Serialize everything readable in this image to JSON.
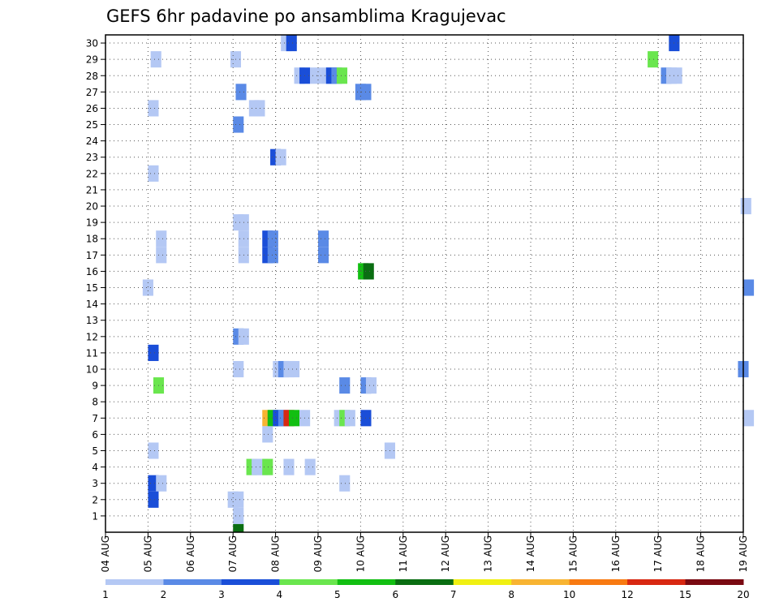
{
  "chart_data": {
    "type": "heatmap",
    "title": "GEFS 6hr padavine po ansamblima Kragujevac",
    "x_tick_labels": [
      "04 AUG",
      "05 AUG",
      "06 AUG",
      "07 AUG",
      "08 AUG",
      "09 AUG",
      "10 AUG",
      "11 AUG",
      "12 AUG",
      "13 AUG",
      "14 AUG",
      "15 AUG",
      "16 AUG",
      "17 AUG",
      "18 AUG",
      "19 AUG"
    ],
    "x_range_days": [
      0,
      15
    ],
    "y_range": [
      0,
      30
    ],
    "y_ticks": [
      1,
      2,
      3,
      4,
      5,
      6,
      7,
      8,
      9,
      10,
      11,
      12,
      13,
      14,
      15,
      16,
      17,
      18,
      19,
      20,
      21,
      22,
      23,
      24,
      25,
      26,
      27,
      28,
      29,
      30
    ],
    "grid": true,
    "colorbar": {
      "tick_labels": [
        "1",
        "2",
        "3",
        "4",
        "5",
        "6",
        "7",
        "8",
        "10",
        "12",
        "15",
        "20"
      ],
      "colors": [
        "#b4c8f4",
        "#5a8ae6",
        "#1a4ed8",
        "#6ae64e",
        "#12bf12",
        "#0a6e12",
        "#f0f012",
        "#f8b432",
        "#f87a12",
        "#d82812",
        "#7a0a12"
      ]
    },
    "cells": [
      {
        "m": 30,
        "t": 16.5,
        "c": 1
      },
      {
        "m": 30,
        "t": 17,
        "c": 3
      },
      {
        "m": 30,
        "t": 53,
        "c": 3
      },
      {
        "m": 29,
        "t": 4.25,
        "c": 1
      },
      {
        "m": 29,
        "t": 11.75,
        "c": 1
      },
      {
        "m": 29,
        "t": 51,
        "c": 4
      },
      {
        "m": 28,
        "t": 17.75,
        "c": 1
      },
      {
        "m": 28,
        "t": 18.25,
        "c": 3
      },
      {
        "m": 28,
        "t": 19.25,
        "c": 1
      },
      {
        "m": 28,
        "t": 20.25,
        "c": 1
      },
      {
        "m": 28,
        "t": 20.75,
        "c": 3
      },
      {
        "m": 28,
        "t": 21.25,
        "c": 2
      },
      {
        "m": 28,
        "t": 21.75,
        "c": 4
      },
      {
        "m": 28,
        "t": 52.25,
        "c": 2
      },
      {
        "m": 28,
        "t": 52.75,
        "c": 1
      },
      {
        "m": 28,
        "t": 53.25,
        "c": 1
      },
      {
        "m": 27,
        "t": 12.25,
        "c": 2
      },
      {
        "m": 27,
        "t": 23.5,
        "c": 2
      },
      {
        "m": 27,
        "t": 24,
        "c": 2
      },
      {
        "m": 26,
        "t": 4,
        "c": 1
      },
      {
        "m": 26,
        "t": 13.5,
        "c": 1
      },
      {
        "m": 26,
        "t": 14,
        "c": 1
      },
      {
        "m": 25,
        "t": 12,
        "c": 2
      },
      {
        "m": 23,
        "t": 15.5,
        "c": 3
      },
      {
        "m": 23,
        "t": 16,
        "c": 1
      },
      {
        "m": 22,
        "t": 4,
        "c": 1
      },
      {
        "m": 20,
        "t": 59.75,
        "c": 1
      },
      {
        "m": 19,
        "t": 12,
        "c": 1
      },
      {
        "m": 19,
        "t": 12.5,
        "c": 1
      },
      {
        "m": 18,
        "t": 4.75,
        "c": 1
      },
      {
        "m": 18,
        "t": 12.5,
        "c": 1
      },
      {
        "m": 18,
        "t": 14.75,
        "c": 3
      },
      {
        "m": 18,
        "t": 15.25,
        "c": 2
      },
      {
        "m": 18,
        "t": 20,
        "c": 2
      },
      {
        "m": 17,
        "t": 4.75,
        "c": 1
      },
      {
        "m": 17,
        "t": 12.5,
        "c": 1
      },
      {
        "m": 17,
        "t": 14.75,
        "c": 3
      },
      {
        "m": 17,
        "t": 15.25,
        "c": 2
      },
      {
        "m": 17,
        "t": 20,
        "c": 2
      },
      {
        "m": 16,
        "t": 23.75,
        "c": 5
      },
      {
        "m": 16,
        "t": 24.25,
        "c": 6
      },
      {
        "m": 15,
        "t": 3.5,
        "c": 1
      },
      {
        "m": 15,
        "t": 60,
        "c": 2
      },
      {
        "m": 12,
        "t": 12,
        "c": 2
      },
      {
        "m": 12,
        "t": 12.5,
        "c": 1
      },
      {
        "m": 11,
        "t": 4,
        "c": 3
      },
      {
        "m": 10,
        "t": 12,
        "c": 1
      },
      {
        "m": 10,
        "t": 15.75,
        "c": 1
      },
      {
        "m": 10,
        "t": 16.25,
        "c": 2
      },
      {
        "m": 10,
        "t": 16.75,
        "c": 1
      },
      {
        "m": 10,
        "t": 17.25,
        "c": 1
      },
      {
        "m": 10,
        "t": 59.5,
        "c": 2
      },
      {
        "m": 9,
        "t": 4.5,
        "c": 4
      },
      {
        "m": 9,
        "t": 22,
        "c": 2
      },
      {
        "m": 9,
        "t": 24,
        "c": 2
      },
      {
        "m": 9,
        "t": 24.5,
        "c": 1
      },
      {
        "m": 7,
        "t": 14.75,
        "c": 8
      },
      {
        "m": 7,
        "t": 15.25,
        "c": 5
      },
      {
        "m": 7,
        "t": 15.75,
        "c": 3
      },
      {
        "m": 7,
        "t": 16.25,
        "c": 2
      },
      {
        "m": 7,
        "t": 16.75,
        "c": 10
      },
      {
        "m": 7,
        "t": 17.25,
        "c": 5
      },
      {
        "m": 7,
        "t": 18.25,
        "c": 1
      },
      {
        "m": 7,
        "t": 21.5,
        "c": 1
      },
      {
        "m": 7,
        "t": 22,
        "c": 4
      },
      {
        "m": 7,
        "t": 22.5,
        "c": 1
      },
      {
        "m": 7,
        "t": 24,
        "c": 3
      },
      {
        "m": 7,
        "t": 60,
        "c": 1
      },
      {
        "m": 6,
        "t": 14.75,
        "c": 1
      },
      {
        "m": 5,
        "t": 4,
        "c": 1
      },
      {
        "m": 5,
        "t": 26.25,
        "c": 1
      },
      {
        "m": 4,
        "t": 13.25,
        "c": 4
      },
      {
        "m": 4,
        "t": 13.75,
        "c": 1
      },
      {
        "m": 4,
        "t": 14.25,
        "c": 1
      },
      {
        "m": 4,
        "t": 14.75,
        "c": 4
      },
      {
        "m": 4,
        "t": 16.75,
        "c": 1
      },
      {
        "m": 4,
        "t": 18.75,
        "c": 1
      },
      {
        "m": 3,
        "t": 4,
        "c": 3
      },
      {
        "m": 3,
        "t": 4.75,
        "c": 1
      },
      {
        "m": 3,
        "t": 22,
        "c": 1
      },
      {
        "m": 2,
        "t": 4,
        "c": 3
      },
      {
        "m": 2,
        "t": 11.5,
        "c": 1
      },
      {
        "m": 2,
        "t": 12,
        "c": 1
      },
      {
        "m": 1,
        "t": 12,
        "c": 1
      },
      {
        "m": 0,
        "t": 12,
        "c": 6
      }
    ]
  }
}
